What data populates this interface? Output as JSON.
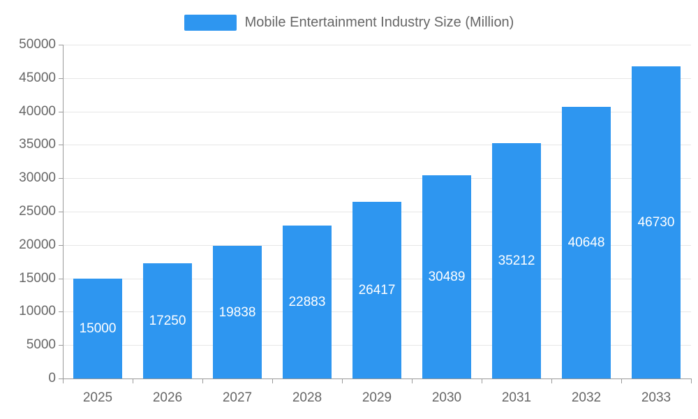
{
  "chart_data": {
    "type": "bar",
    "title": "Mobile Entertainment Industry Size (Million)",
    "series_name": "Mobile Entertainment Industry Size (Million)",
    "categories": [
      "2025",
      "2026",
      "2027",
      "2028",
      "2029",
      "2030",
      "2031",
      "2032",
      "2033"
    ],
    "values": [
      15000,
      17250,
      19838,
      22883,
      26417,
      30489,
      35212,
      40648,
      46730
    ],
    "xlabel": "",
    "ylabel": "",
    "ylim": [
      0,
      50000
    ],
    "ytick_step": 5000,
    "ytick_labels": [
      "0",
      "5000",
      "10000",
      "15000",
      "20000",
      "25000",
      "30000",
      "35000",
      "40000",
      "45000",
      "50000"
    ],
    "grid": true,
    "legend_position": "top",
    "value_labels_position": "inside-center",
    "colors": {
      "bar": "#2E96F0",
      "value_label": "#FFFFFF",
      "axis_label": "#666666",
      "gridline": "#E6E6E6",
      "axis_line": "#999999",
      "background": "#FFFFFF"
    }
  },
  "legend": {
    "label": "Mobile Entertainment Industry Size (Million)"
  }
}
